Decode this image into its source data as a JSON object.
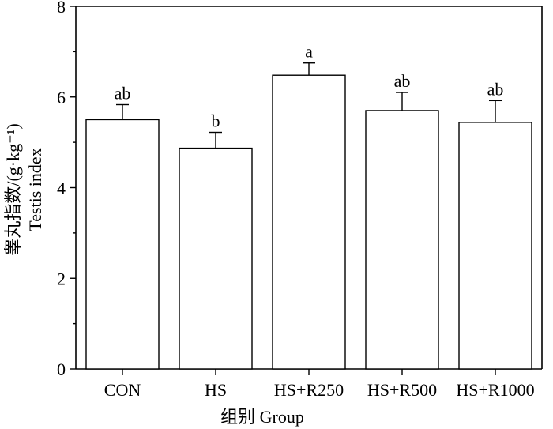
{
  "chart_data": {
    "type": "bar",
    "categories": [
      "CON",
      "HS",
      "HS+R250",
      "HS+R500",
      "HS+R1000"
    ],
    "values": [
      5.5,
      4.87,
      6.48,
      5.7,
      5.44
    ],
    "errors": [
      0.33,
      0.35,
      0.27,
      0.4,
      0.48
    ],
    "significance_labels": [
      "ab",
      "b",
      "a",
      "ab",
      "ab"
    ],
    "xlabel": "组别 Group",
    "ylabel_cn": "睾丸指数/(g·kg⁻¹)",
    "ylabel_en": "Testis index",
    "ylim": [
      0,
      8
    ],
    "yticks": [
      0,
      2,
      4,
      6,
      8
    ],
    "ytick_labels": [
      "0",
      "2",
      "4",
      "6",
      "8"
    ],
    "grid": false,
    "bar_fill": "#ffffff",
    "bar_stroke": "#000000"
  }
}
